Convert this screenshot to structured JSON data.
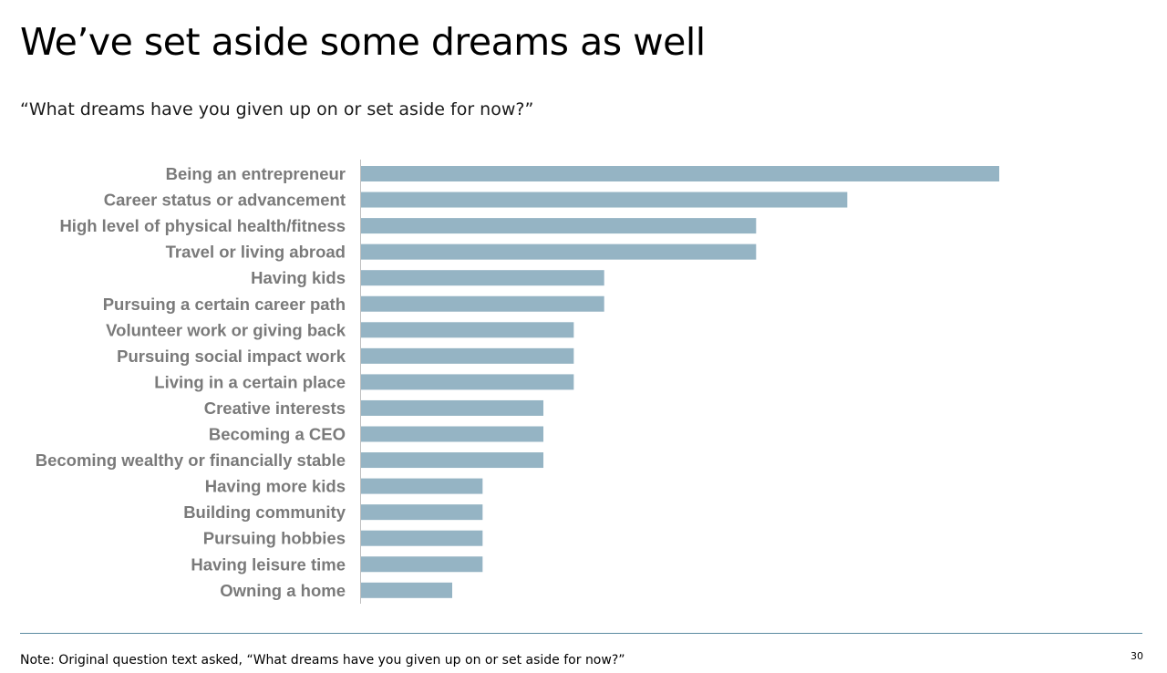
{
  "slide": {
    "title": "We’ve set aside some dreams as well",
    "subtitle": "“What dreams have you given up on or set aside for now?”",
    "footnote": "Note: Original question text asked, “What dreams have you given up on or set aside for now?”",
    "page_number": "30"
  },
  "colors": {
    "bar": "#95b4c4",
    "axis": "#bfbfbf",
    "label": "#7a7a7a",
    "footer_rule": "#5a8aa0"
  },
  "chart_data": {
    "type": "bar",
    "orientation": "horizontal",
    "categories": [
      "Being an entrepreneur",
      "Career status or advancement",
      "High level of physical health/fitness",
      "Travel or living abroad",
      "Having kids",
      "Pursuing a certain career path",
      "Volunteer work or giving back",
      "Pursuing social impact work",
      "Living in a certain place",
      "Creative interests",
      "Becoming a CEO",
      "Becoming wealthy or financially stable",
      "Having more kids",
      "Building community",
      "Pursuing hobbies",
      "Having leisure time",
      "Owning a home"
    ],
    "values": [
      21,
      16,
      13,
      13,
      8,
      8,
      7,
      7,
      7,
      6,
      6,
      6,
      4,
      4,
      4,
      4,
      3
    ],
    "xlim": [
      0,
      21
    ],
    "grid": false,
    "legend": "none",
    "value_labels": false
  }
}
